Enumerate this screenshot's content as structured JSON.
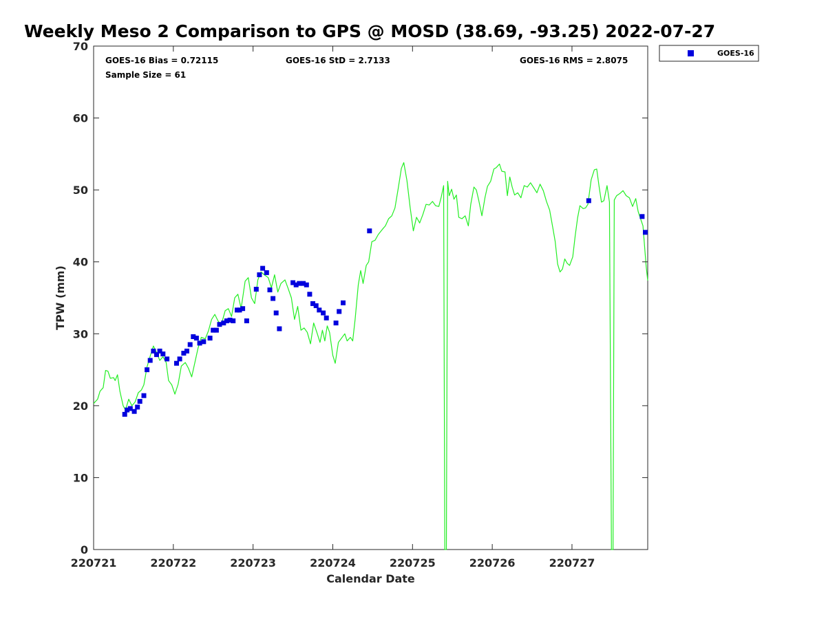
{
  "chart_data": {
    "type": "scatter",
    "title": "Weekly Meso 2 Comparison to GPS @ MOSD (38.69, -93.25) 2022-07-27",
    "xlabel": "Calendar Date",
    "ylabel": "TPW (mm)",
    "xlim": [
      0,
      6.95
    ],
    "ylim": [
      0,
      70
    ],
    "x_ticks": [
      {
        "x": 0,
        "label": "220721"
      },
      {
        "x": 1,
        "label": "220722"
      },
      {
        "x": 2,
        "label": "220723"
      },
      {
        "x": 3,
        "label": "220724"
      },
      {
        "x": 4,
        "label": "220725"
      },
      {
        "x": 5,
        "label": "220726"
      },
      {
        "x": 6,
        "label": "220727"
      }
    ],
    "y_ticks": [
      0,
      10,
      20,
      30,
      40,
      50,
      60,
      70
    ],
    "grid": false,
    "legend_position": "top-right",
    "stats": {
      "bias": "GOES-16 Bias = 0.72115",
      "std": "GOES-16 StD = 2.7133",
      "rms": "GOES-16 RMS = 2.8075",
      "sample": "Sample Size = 61"
    },
    "colors": {
      "goes": "#0000dd",
      "gps": "#22ee22"
    },
    "series": [
      {
        "name": "GOES-16",
        "kind": "markers",
        "points": [
          [
            0.39,
            18.8
          ],
          [
            0.42,
            19.4
          ],
          [
            0.46,
            19.6
          ],
          [
            0.51,
            19.2
          ],
          [
            0.55,
            19.8
          ],
          [
            0.58,
            20.6
          ],
          [
            0.63,
            21.4
          ],
          [
            0.67,
            25.0
          ],
          [
            0.71,
            26.3
          ],
          [
            0.75,
            27.6
          ],
          [
            0.79,
            27.1
          ],
          [
            0.83,
            27.6
          ],
          [
            0.87,
            27.2
          ],
          [
            0.92,
            26.5
          ],
          [
            1.04,
            25.9
          ],
          [
            1.08,
            26.5
          ],
          [
            1.13,
            27.3
          ],
          [
            1.17,
            27.6
          ],
          [
            1.21,
            28.5
          ],
          [
            1.25,
            29.6
          ],
          [
            1.29,
            29.4
          ],
          [
            1.33,
            28.7
          ],
          [
            1.38,
            28.9
          ],
          [
            1.46,
            29.4
          ],
          [
            1.5,
            30.5
          ],
          [
            1.54,
            30.5
          ],
          [
            1.58,
            31.3
          ],
          [
            1.63,
            31.5
          ],
          [
            1.67,
            31.8
          ],
          [
            1.71,
            31.9
          ],
          [
            1.75,
            31.8
          ],
          [
            1.8,
            33.3
          ],
          [
            1.83,
            33.3
          ],
          [
            1.87,
            33.5
          ],
          [
            1.92,
            31.8
          ],
          [
            2.04,
            36.2
          ],
          [
            2.08,
            38.2
          ],
          [
            2.12,
            39.1
          ],
          [
            2.17,
            38.5
          ],
          [
            2.21,
            36.1
          ],
          [
            2.25,
            34.9
          ],
          [
            2.29,
            32.9
          ],
          [
            2.33,
            30.7
          ],
          [
            2.5,
            37.1
          ],
          [
            2.54,
            36.8
          ],
          [
            2.58,
            37.0
          ],
          [
            2.63,
            37.0
          ],
          [
            2.67,
            36.8
          ],
          [
            2.71,
            35.5
          ],
          [
            2.75,
            34.2
          ],
          [
            2.79,
            33.9
          ],
          [
            2.83,
            33.3
          ],
          [
            2.88,
            32.9
          ],
          [
            2.92,
            32.2
          ],
          [
            3.04,
            31.5
          ],
          [
            3.08,
            33.1
          ],
          [
            3.13,
            34.3
          ],
          [
            3.46,
            44.3
          ],
          [
            6.21,
            48.5
          ],
          [
            6.88,
            46.3
          ],
          [
            6.92,
            44.1
          ]
        ]
      },
      {
        "name": "",
        "kind": "line",
        "points": [
          [
            0.0,
            20.3
          ],
          [
            0.05,
            20.9
          ],
          [
            0.08,
            22.0
          ],
          [
            0.12,
            22.5
          ],
          [
            0.15,
            24.9
          ],
          [
            0.18,
            24.8
          ],
          [
            0.21,
            23.8
          ],
          [
            0.25,
            23.9
          ],
          [
            0.27,
            23.5
          ],
          [
            0.3,
            24.3
          ],
          [
            0.33,
            22.0
          ],
          [
            0.37,
            20.0
          ],
          [
            0.4,
            19.4
          ],
          [
            0.44,
            20.9
          ],
          [
            0.48,
            20.0
          ],
          [
            0.52,
            20.5
          ],
          [
            0.56,
            21.8
          ],
          [
            0.6,
            22.2
          ],
          [
            0.63,
            22.9
          ],
          [
            0.67,
            25.4
          ],
          [
            0.71,
            26.9
          ],
          [
            0.75,
            28.3
          ],
          [
            0.79,
            27.4
          ],
          [
            0.83,
            26.3
          ],
          [
            0.87,
            26.8
          ],
          [
            0.91,
            26.0
          ],
          [
            0.94,
            23.5
          ],
          [
            0.98,
            22.9
          ],
          [
            1.02,
            21.6
          ],
          [
            1.06,
            23.0
          ],
          [
            1.1,
            25.5
          ],
          [
            1.15,
            26.0
          ],
          [
            1.19,
            25.2
          ],
          [
            1.23,
            24.0
          ],
          [
            1.27,
            26.0
          ],
          [
            1.31,
            28.0
          ],
          [
            1.35,
            29.5
          ],
          [
            1.4,
            29.3
          ],
          [
            1.44,
            30.4
          ],
          [
            1.48,
            32.0
          ],
          [
            1.52,
            32.7
          ],
          [
            1.56,
            31.8
          ],
          [
            1.6,
            31.2
          ],
          [
            1.65,
            33.2
          ],
          [
            1.69,
            33.5
          ],
          [
            1.73,
            32.4
          ],
          [
            1.77,
            35.0
          ],
          [
            1.81,
            35.5
          ],
          [
            1.85,
            33.5
          ],
          [
            1.9,
            37.3
          ],
          [
            1.94,
            37.8
          ],
          [
            1.98,
            35.0
          ],
          [
            2.02,
            34.2
          ],
          [
            2.06,
            37.5
          ],
          [
            2.1,
            38.6
          ],
          [
            2.14,
            38.2
          ],
          [
            2.19,
            37.8
          ],
          [
            2.23,
            36.4
          ],
          [
            2.27,
            38.2
          ],
          [
            2.31,
            35.8
          ],
          [
            2.35,
            37.0
          ],
          [
            2.4,
            37.5
          ],
          [
            2.44,
            36.3
          ],
          [
            2.48,
            35.0
          ],
          [
            2.52,
            32.0
          ],
          [
            2.56,
            33.8
          ],
          [
            2.6,
            30.5
          ],
          [
            2.64,
            30.8
          ],
          [
            2.68,
            30.2
          ],
          [
            2.72,
            28.6
          ],
          [
            2.76,
            31.5
          ],
          [
            2.8,
            30.2
          ],
          [
            2.84,
            28.8
          ],
          [
            2.87,
            30.5
          ],
          [
            2.9,
            29.0
          ],
          [
            2.93,
            31.1
          ],
          [
            2.96,
            30.2
          ],
          [
            3.0,
            27.0
          ],
          [
            3.03,
            25.9
          ],
          [
            3.07,
            28.8
          ],
          [
            3.11,
            29.4
          ],
          [
            3.15,
            30.0
          ],
          [
            3.18,
            29.0
          ],
          [
            3.22,
            29.5
          ],
          [
            3.25,
            29.0
          ],
          [
            3.28,
            32.0
          ],
          [
            3.32,
            36.8
          ],
          [
            3.35,
            38.8
          ],
          [
            3.38,
            37.0
          ],
          [
            3.42,
            39.5
          ],
          [
            3.45,
            40.0
          ],
          [
            3.49,
            42.8
          ],
          [
            3.53,
            43.0
          ],
          [
            3.57,
            43.8
          ],
          [
            3.62,
            44.5
          ],
          [
            3.66,
            45.0
          ],
          [
            3.7,
            46.0
          ],
          [
            3.74,
            46.4
          ],
          [
            3.78,
            47.5
          ],
          [
            3.82,
            50.2
          ],
          [
            3.86,
            53.0
          ],
          [
            3.89,
            53.8
          ],
          [
            3.93,
            51.3
          ],
          [
            3.97,
            47.6
          ],
          [
            4.01,
            44.3
          ],
          [
            4.05,
            46.2
          ],
          [
            4.09,
            45.4
          ],
          [
            4.13,
            46.6
          ],
          [
            4.17,
            48.0
          ],
          [
            4.21,
            47.9
          ],
          [
            4.25,
            48.4
          ],
          [
            4.29,
            47.8
          ],
          [
            4.33,
            47.7
          ],
          [
            4.36,
            49.0
          ],
          [
            4.39,
            50.6
          ],
          [
            4.405,
            0
          ],
          [
            4.425,
            0
          ],
          [
            4.44,
            51.2
          ],
          [
            4.46,
            49.2
          ],
          [
            4.49,
            50.1
          ],
          [
            4.52,
            48.7
          ],
          [
            4.55,
            49.3
          ],
          [
            4.58,
            46.2
          ],
          [
            4.62,
            46.0
          ],
          [
            4.66,
            46.4
          ],
          [
            4.7,
            45.0
          ],
          [
            4.73,
            48.0
          ],
          [
            4.77,
            50.4
          ],
          [
            4.8,
            50.0
          ],
          [
            4.83,
            48.6
          ],
          [
            4.87,
            46.4
          ],
          [
            4.91,
            49.0
          ],
          [
            4.94,
            50.5
          ],
          [
            4.98,
            51.2
          ],
          [
            5.02,
            52.9
          ],
          [
            5.05,
            53.1
          ],
          [
            5.09,
            53.6
          ],
          [
            5.12,
            52.6
          ],
          [
            5.16,
            52.5
          ],
          [
            5.19,
            49.2
          ],
          [
            5.22,
            51.8
          ],
          [
            5.25,
            50.4
          ],
          [
            5.28,
            49.3
          ],
          [
            5.32,
            49.6
          ],
          [
            5.36,
            48.9
          ],
          [
            5.4,
            50.6
          ],
          [
            5.44,
            50.4
          ],
          [
            5.48,
            51.0
          ],
          [
            5.52,
            50.3
          ],
          [
            5.56,
            49.6
          ],
          [
            5.6,
            50.8
          ],
          [
            5.64,
            49.9
          ],
          [
            5.68,
            48.4
          ],
          [
            5.72,
            47.2
          ],
          [
            5.76,
            44.7
          ],
          [
            5.79,
            42.8
          ],
          [
            5.82,
            39.7
          ],
          [
            5.85,
            38.6
          ],
          [
            5.88,
            39.0
          ],
          [
            5.91,
            40.4
          ],
          [
            5.94,
            39.8
          ],
          [
            5.97,
            39.5
          ],
          [
            6.01,
            40.7
          ],
          [
            6.04,
            43.6
          ],
          [
            6.07,
            46.1
          ],
          [
            6.1,
            47.8
          ],
          [
            6.14,
            47.4
          ],
          [
            6.17,
            47.5
          ],
          [
            6.2,
            48.0
          ],
          [
            6.24,
            51.4
          ],
          [
            6.28,
            52.8
          ],
          [
            6.31,
            52.9
          ],
          [
            6.34,
            50.5
          ],
          [
            6.37,
            48.3
          ],
          [
            6.4,
            48.5
          ],
          [
            6.44,
            50.6
          ],
          [
            6.47,
            48.3
          ],
          [
            6.495,
            0
          ],
          [
            6.515,
            0
          ],
          [
            6.53,
            48.6
          ],
          [
            6.56,
            49.2
          ],
          [
            6.6,
            49.5
          ],
          [
            6.64,
            49.9
          ],
          [
            6.68,
            49.2
          ],
          [
            6.72,
            48.9
          ],
          [
            6.76,
            47.7
          ],
          [
            6.8,
            48.8
          ],
          [
            6.83,
            47.0
          ],
          [
            6.86,
            46.0
          ],
          [
            6.89,
            45.0
          ],
          [
            6.93,
            39.4
          ],
          [
            6.95,
            37.4
          ]
        ]
      }
    ]
  }
}
